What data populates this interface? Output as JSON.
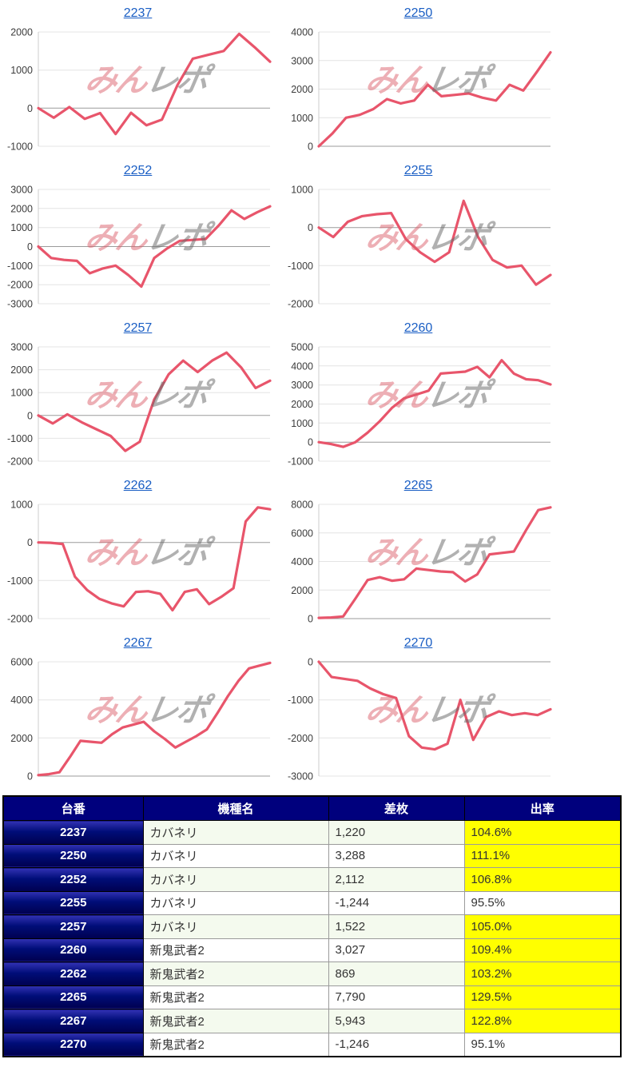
{
  "watermark": {
    "pink_part": "みん",
    "gray_part": "レポ"
  },
  "colors": {
    "line": "#e8556b",
    "title_link": "#1a5ec4",
    "grid": "#e4e4e4",
    "zero_line": "#9b9b9b",
    "axis_line": "#cccccc",
    "axis_text": "#3c3c3c",
    "table_header_bg": "#00007d",
    "machine_col_gradient_top": "#3232b4",
    "machine_col_gradient_bottom": "#000050",
    "rate_highlight": "#ffff00",
    "negative_value": "#e02020",
    "row_alt_green": "#f4faee",
    "watermark_pink": "rgba(219,96,108,0.5)",
    "watermark_gray": "rgba(105,105,105,0.52)"
  },
  "chart_data": [
    {
      "type": "line",
      "title": "2237",
      "ylim": [
        -1000,
        2000
      ],
      "ytick_step": 1000,
      "grid": true,
      "values": [
        0,
        -250,
        30,
        -280,
        -130,
        -680,
        -120,
        -450,
        -300,
        600,
        1300,
        1400,
        1500,
        1950,
        1600,
        1220
      ]
    },
    {
      "type": "line",
      "title": "2250",
      "ylim": [
        0,
        4000
      ],
      "ytick_step": 1000,
      "grid": true,
      "values": [
        0,
        450,
        1000,
        1100,
        1300,
        1650,
        1500,
        1600,
        2150,
        1750,
        1800,
        1850,
        1700,
        1600,
        2150,
        1950,
        2600,
        3288
      ]
    },
    {
      "type": "line",
      "title": "2252",
      "ylim": [
        -3000,
        3000
      ],
      "ytick_step": 1000,
      "grid": true,
      "values": [
        0,
        -600,
        -700,
        -750,
        -1400,
        -1150,
        -1000,
        -1500,
        -2100,
        -600,
        -100,
        300,
        350,
        400,
        1100,
        1900,
        1450,
        1800,
        2112
      ]
    },
    {
      "type": "line",
      "title": "2255",
      "ylim": [
        -2000,
        1000
      ],
      "ytick_step": 1000,
      "grid": true,
      "values": [
        0,
        -250,
        150,
        300,
        350,
        380,
        -300,
        -650,
        -900,
        -650,
        700,
        -250,
        -850,
        -1050,
        -1000,
        -1500,
        -1244
      ]
    },
    {
      "type": "line",
      "title": "2257",
      "ylim": [
        -2000,
        3000
      ],
      "ytick_step": 1000,
      "grid": true,
      "values": [
        0,
        -350,
        50,
        -300,
        -600,
        -900,
        -1550,
        -1150,
        700,
        1800,
        2400,
        1900,
        2400,
        2750,
        2100,
        1200,
        1522
      ]
    },
    {
      "type": "line",
      "title": "2260",
      "ylim": [
        -1000,
        5000
      ],
      "ytick_step": 1000,
      "grid": true,
      "values": [
        0,
        -100,
        -250,
        0,
        500,
        1100,
        1800,
        2300,
        2500,
        2700,
        3600,
        3650,
        3700,
        3950,
        3400,
        4300,
        3600,
        3300,
        3250,
        3027
      ]
    },
    {
      "type": "line",
      "title": "2262",
      "ylim": [
        -2000,
        1000
      ],
      "ytick_step": 1000,
      "grid": true,
      "values": [
        0,
        -10,
        -40,
        -900,
        -1250,
        -1480,
        -1600,
        -1680,
        -1300,
        -1280,
        -1350,
        -1780,
        -1300,
        -1230,
        -1620,
        -1430,
        -1200,
        550,
        920,
        869
      ]
    },
    {
      "type": "line",
      "title": "2265",
      "ylim": [
        0,
        8000
      ],
      "ytick_step": 2000,
      "grid": true,
      "values": [
        50,
        80,
        150,
        1400,
        2700,
        2900,
        2650,
        2750,
        3500,
        3400,
        3300,
        3250,
        2600,
        3100,
        4500,
        4600,
        4700,
        6200,
        7600,
        7790
      ]
    },
    {
      "type": "line",
      "title": "2267",
      "ylim": [
        0,
        6000
      ],
      "ytick_step": 2000,
      "grid": true,
      "values": [
        50,
        100,
        200,
        1000,
        1850,
        1800,
        1750,
        2200,
        2550,
        2700,
        2850,
        2350,
        1950,
        1500,
        1800,
        2100,
        2450,
        3300,
        4200,
        5000,
        5650,
        5800,
        5943
      ]
    },
    {
      "type": "line",
      "title": "2270",
      "ylim": [
        -3000,
        0
      ],
      "ytick_step": 1000,
      "grid": true,
      "values": [
        0,
        -400,
        -450,
        -500,
        -700,
        -850,
        -950,
        -1950,
        -2250,
        -2300,
        -2150,
        -1000,
        -2050,
        -1450,
        -1300,
        -1400,
        -1350,
        -1400,
        -1246
      ]
    }
  ],
  "table": {
    "columns": [
      "台番",
      "機種名",
      "差枚",
      "出率"
    ],
    "rows": [
      {
        "no": "2237",
        "model": "カバネリ",
        "diff": "1,220",
        "rate": "104.6%"
      },
      {
        "no": "2250",
        "model": "カバネリ",
        "diff": "3,288",
        "rate": "111.1%"
      },
      {
        "no": "2252",
        "model": "カバネリ",
        "diff": "2,112",
        "rate": "106.8%"
      },
      {
        "no": "2255",
        "model": "カバネリ",
        "diff": "-1,244",
        "rate": "95.5%"
      },
      {
        "no": "2257",
        "model": "カバネリ",
        "diff": "1,522",
        "rate": "105.0%"
      },
      {
        "no": "2260",
        "model": "新鬼武者2",
        "diff": "3,027",
        "rate": "109.4%"
      },
      {
        "no": "2262",
        "model": "新鬼武者2",
        "diff": "869",
        "rate": "103.2%"
      },
      {
        "no": "2265",
        "model": "新鬼武者2",
        "diff": "7,790",
        "rate": "129.5%"
      },
      {
        "no": "2267",
        "model": "新鬼武者2",
        "diff": "5,943",
        "rate": "122.8%"
      },
      {
        "no": "2270",
        "model": "新鬼武者2",
        "diff": "-1,246",
        "rate": "95.1%"
      }
    ]
  }
}
